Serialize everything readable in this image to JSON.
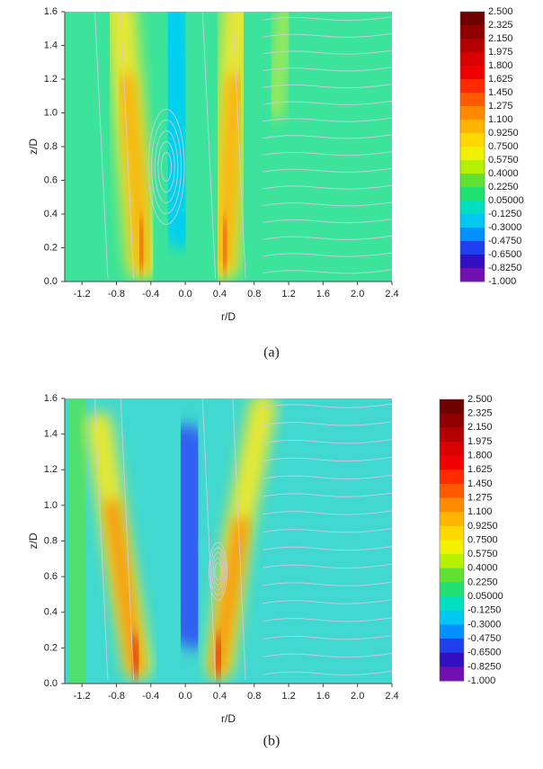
{
  "chart_data": [
    {
      "type": "contour",
      "caption": "(a)",
      "xlabel": "r/D",
      "ylabel": "z/D",
      "xlim": [
        -1.4,
        2.4
      ],
      "ylim": [
        0,
        1.6
      ],
      "xticks": [
        -1.2,
        -0.8,
        -0.4,
        {
          "value": 0,
          "label": "0.0"
        },
        0.4,
        0.8,
        1.2,
        1.6,
        {
          "value": 2,
          "label": "2.0"
        },
        2.4
      ],
      "yticks": [
        {
          "value": 0,
          "label": "0.0"
        },
        0.2,
        0.4,
        0.6,
        0.8,
        {
          "value": 1,
          "label": "1.0"
        },
        1.2,
        1.4,
        1.6
      ],
      "colorbar": {
        "ticks": [
          {
            "value": 2.5,
            "label": "2.500"
          },
          {
            "value": 2.325,
            "label": "2.325"
          },
          {
            "value": 2.15,
            "label": "2.150"
          },
          {
            "value": 1.975,
            "label": "1.975"
          },
          {
            "value": 1.8,
            "label": "1.800"
          },
          {
            "value": 1.625,
            "label": "1.625"
          },
          {
            "value": 1.45,
            "label": "1.450"
          },
          {
            "value": 1.275,
            "label": "1.275"
          },
          {
            "value": 1.1,
            "label": "1.100"
          },
          {
            "value": 0.925,
            "label": "0.9250"
          },
          {
            "value": 0.75,
            "label": "0.7500"
          },
          {
            "value": 0.575,
            "label": "0.5750"
          },
          {
            "value": 0.4,
            "label": "0.4000"
          },
          {
            "value": 0.225,
            "label": "0.2250"
          },
          {
            "value": 0.05,
            "label": "0.05000"
          },
          {
            "value": -0.125,
            "label": "-0.1250"
          },
          {
            "value": -0.3,
            "label": "-0.3000"
          },
          {
            "value": -0.475,
            "label": "-0.4750"
          },
          {
            "value": -0.65,
            "label": "-0.6500"
          },
          {
            "value": -0.825,
            "label": "-0.8250"
          },
          {
            "value": -1,
            "label": "-1.000"
          }
        ],
        "colors": [
          "#6e0000",
          "#900000",
          "#b40000",
          "#d80000",
          "#f00000",
          "#ff2a00",
          "#ff5a00",
          "#ff8a00",
          "#ffb400",
          "#ffd800",
          "#f0f000",
          "#b4f000",
          "#60e030",
          "#20e070",
          "#00e0c0",
          "#00c8f0",
          "#0090ff",
          "#2040f0",
          "#3010c0",
          "#7010b0"
        ]
      }
    },
    {
      "type": "contour",
      "caption": "(b)",
      "xlabel": "r/D",
      "ylabel": "z/D",
      "xlim": [
        -1.4,
        2.4
      ],
      "ylim": [
        0,
        1.6
      ],
      "xticks": [
        -1.2,
        -0.8,
        -0.4,
        {
          "value": 0,
          "label": "0.0"
        },
        0.4,
        0.8,
        1.2,
        1.6,
        {
          "value": 2,
          "label": "2.0"
        },
        2.4
      ],
      "yticks": [
        {
          "value": 0,
          "label": "0.0"
        },
        0.2,
        0.4,
        0.6,
        0.8,
        {
          "value": 1,
          "label": "1.0"
        },
        1.2,
        1.4,
        1.6
      ],
      "colorbar": {
        "ticks": [
          {
            "value": 2.5,
            "label": "2.500"
          },
          {
            "value": 2.325,
            "label": "2.325"
          },
          {
            "value": 2.15,
            "label": "2.150"
          },
          {
            "value": 1.975,
            "label": "1.975"
          },
          {
            "value": 1.8,
            "label": "1.800"
          },
          {
            "value": 1.625,
            "label": "1.625"
          },
          {
            "value": 1.45,
            "label": "1.450"
          },
          {
            "value": 1.275,
            "label": "1.275"
          },
          {
            "value": 1.1,
            "label": "1.100"
          },
          {
            "value": 0.925,
            "label": "0.9250"
          },
          {
            "value": 0.75,
            "label": "0.7500"
          },
          {
            "value": 0.575,
            "label": "0.5750"
          },
          {
            "value": 0.4,
            "label": "0.4000"
          },
          {
            "value": 0.225,
            "label": "0.2250"
          },
          {
            "value": 0.05,
            "label": "0.05000"
          },
          {
            "value": -0.125,
            "label": "-0.1250"
          },
          {
            "value": -0.3,
            "label": "-0.3000"
          },
          {
            "value": -0.475,
            "label": "-0.4750"
          },
          {
            "value": -0.65,
            "label": "-0.6500"
          },
          {
            "value": -0.825,
            "label": "-0.8250"
          },
          {
            "value": -1,
            "label": "-1.000"
          }
        ],
        "colors": [
          "#6e0000",
          "#900000",
          "#b40000",
          "#d80000",
          "#f00000",
          "#ff2a00",
          "#ff5a00",
          "#ff8a00",
          "#ffb400",
          "#ffd800",
          "#f0f000",
          "#b4f000",
          "#60e030",
          "#20e070",
          "#00e0c0",
          "#00c8f0",
          "#0090ff",
          "#2040f0",
          "#3010c0",
          "#7010b0"
        ]
      }
    }
  ]
}
